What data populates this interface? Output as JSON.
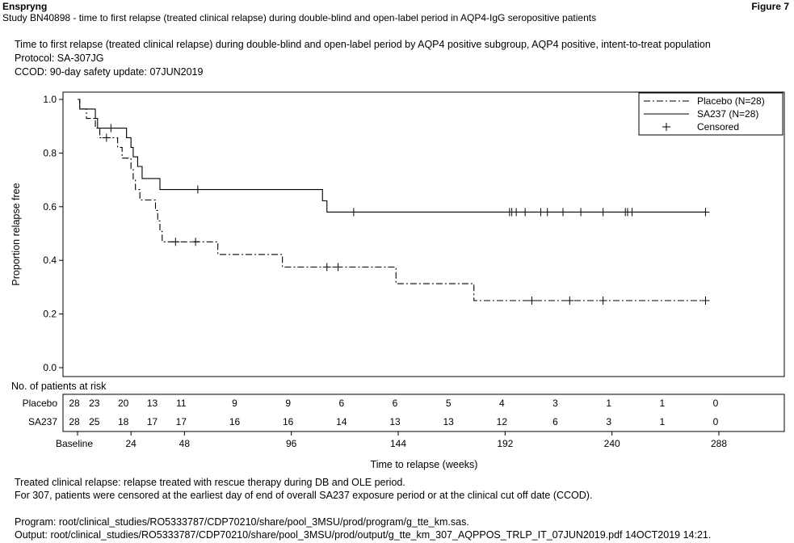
{
  "page": {
    "brand": "Enspryng",
    "figure_label": "Figure 7",
    "study_title": "Study BN40898 - time to first relapse (treated clinical relapse) during double-blind and open-label period in AQP4-IgG seropositive patients",
    "header_lines": [
      "Time to first relapse (treated clinical relapse) during double-blind and open-label period by AQP4 positive subgroup, AQP4 positive, intent-to-treat population",
      "Protocol: SA-307JG",
      "CCOD: 90-day safety update: 07JUN2019"
    ],
    "footnotes": [
      "Treated clinical relapse: relapse treated with rescue therapy during DB and OLE period.",
      "For 307, patients were censored at the earliest day of end of overall SA237 exposure period or at the clinical cut off date (CCOD)."
    ],
    "program_lines": [
      "Program: root/clinical_studies/RO5333787/CDP70210/share/pool_3MSU/prod/program/g_tte_km.sas.",
      "Output: root/clinical_studies/RO5333787/CDP70210/share/pool_3MSU/prod/output/g_tte_km_307_AQPPOS_TRLP_IT_07JUN2019.pdf 14OCT2019 14:21."
    ]
  },
  "chart_data": {
    "type": "line",
    "subtype": "kaplan-meier step",
    "ylabel": "Proportion relapse free",
    "xlabel": "Time to relapse (weeks)",
    "xlim": [
      0,
      288
    ],
    "ylim": [
      0,
      1.0
    ],
    "x_ticks": [
      {
        "value": 0,
        "label": "Baseline"
      },
      {
        "value": 24,
        "label": "24"
      },
      {
        "value": 48,
        "label": "48"
      },
      {
        "value": 96,
        "label": "96"
      },
      {
        "value": 144,
        "label": "144"
      },
      {
        "value": 192,
        "label": "192"
      },
      {
        "value": 240,
        "label": "240"
      },
      {
        "value": 288,
        "label": "288"
      }
    ],
    "y_ticks": [
      {
        "value": 0.0,
        "label": "0.0"
      },
      {
        "value": 0.2,
        "label": "0.2"
      },
      {
        "value": 0.4,
        "label": "0.4"
      },
      {
        "value": 0.6,
        "label": "0.6"
      },
      {
        "value": 0.8,
        "label": "0.8"
      },
      {
        "value": 1.0,
        "label": "1.0"
      }
    ],
    "legend": {
      "position": "top-right",
      "entries": [
        {
          "label": "Placebo (N=28)",
          "style": "dash-dot"
        },
        {
          "label": "SA237 (N=28)",
          "style": "solid"
        },
        {
          "label": "Censored",
          "style": "plus"
        }
      ]
    },
    "series": [
      {
        "name": "Placebo (N=28)",
        "style": "dash-dot",
        "steps": [
          [
            0,
            1.0
          ],
          [
            1,
            0.964
          ],
          [
            4,
            0.929
          ],
          [
            8,
            0.893
          ],
          [
            10,
            0.857
          ],
          [
            18,
            0.821
          ],
          [
            20,
            0.781
          ],
          [
            24,
            0.742
          ],
          [
            25,
            0.703
          ],
          [
            26,
            0.664
          ],
          [
            28,
            0.625
          ],
          [
            35,
            0.586
          ],
          [
            36,
            0.547
          ],
          [
            37,
            0.508
          ],
          [
            38,
            0.469
          ],
          [
            63,
            0.422
          ],
          [
            92,
            0.375
          ],
          [
            143,
            0.313
          ],
          [
            178,
            0.25
          ]
        ],
        "end": 282,
        "censored": [
          [
            13,
            0.857
          ],
          [
            44,
            0.469
          ],
          [
            53,
            0.469
          ],
          [
            112,
            0.375
          ],
          [
            117,
            0.375
          ],
          [
            204,
            0.25
          ],
          [
            221,
            0.25
          ],
          [
            236,
            0.25
          ],
          [
            282,
            0.25
          ]
        ]
      },
      {
        "name": "SA237 (N=28)",
        "style": "solid",
        "steps": [
          [
            0,
            1.0
          ],
          [
            1,
            0.964
          ],
          [
            8,
            0.929
          ],
          [
            9,
            0.893
          ],
          [
            22,
            0.857
          ],
          [
            24,
            0.821
          ],
          [
            25,
            0.786
          ],
          [
            27,
            0.75
          ],
          [
            29,
            0.705
          ],
          [
            31,
            0.705
          ],
          [
            37,
            0.664
          ],
          [
            110,
            0.622
          ],
          [
            112,
            0.58
          ]
        ],
        "end": 282,
        "censored": [
          [
            15,
            0.893
          ],
          [
            54,
            0.664
          ],
          [
            124,
            0.58
          ],
          [
            194,
            0.58
          ],
          [
            195,
            0.58
          ],
          [
            197,
            0.58
          ],
          [
            201,
            0.58
          ],
          [
            208,
            0.58
          ],
          [
            211,
            0.58
          ],
          [
            218,
            0.58
          ],
          [
            226,
            0.58
          ],
          [
            236,
            0.58
          ],
          [
            246,
            0.58
          ],
          [
            247,
            0.58
          ],
          [
            249,
            0.58
          ],
          [
            282,
            0.58
          ]
        ]
      }
    ],
    "risk_table": {
      "title": "No. of patients at risk",
      "times": [
        0,
        9,
        22,
        35,
        48,
        72,
        96,
        120,
        144,
        168,
        192,
        216,
        240,
        264,
        288
      ],
      "rows": [
        {
          "label": "Placebo",
          "values": [
            "28",
            "23",
            "20",
            "13",
            "11",
            "9",
            "9",
            "6",
            "6",
            "5",
            "4",
            "3",
            "1",
            "1",
            "0"
          ]
        },
        {
          "label": "SA237",
          "values": [
            "28",
            "25",
            "18",
            "17",
            "17",
            "16",
            "16",
            "14",
            "13",
            "13",
            "12",
            "6",
            "3",
            "1",
            "0"
          ]
        }
      ]
    }
  }
}
